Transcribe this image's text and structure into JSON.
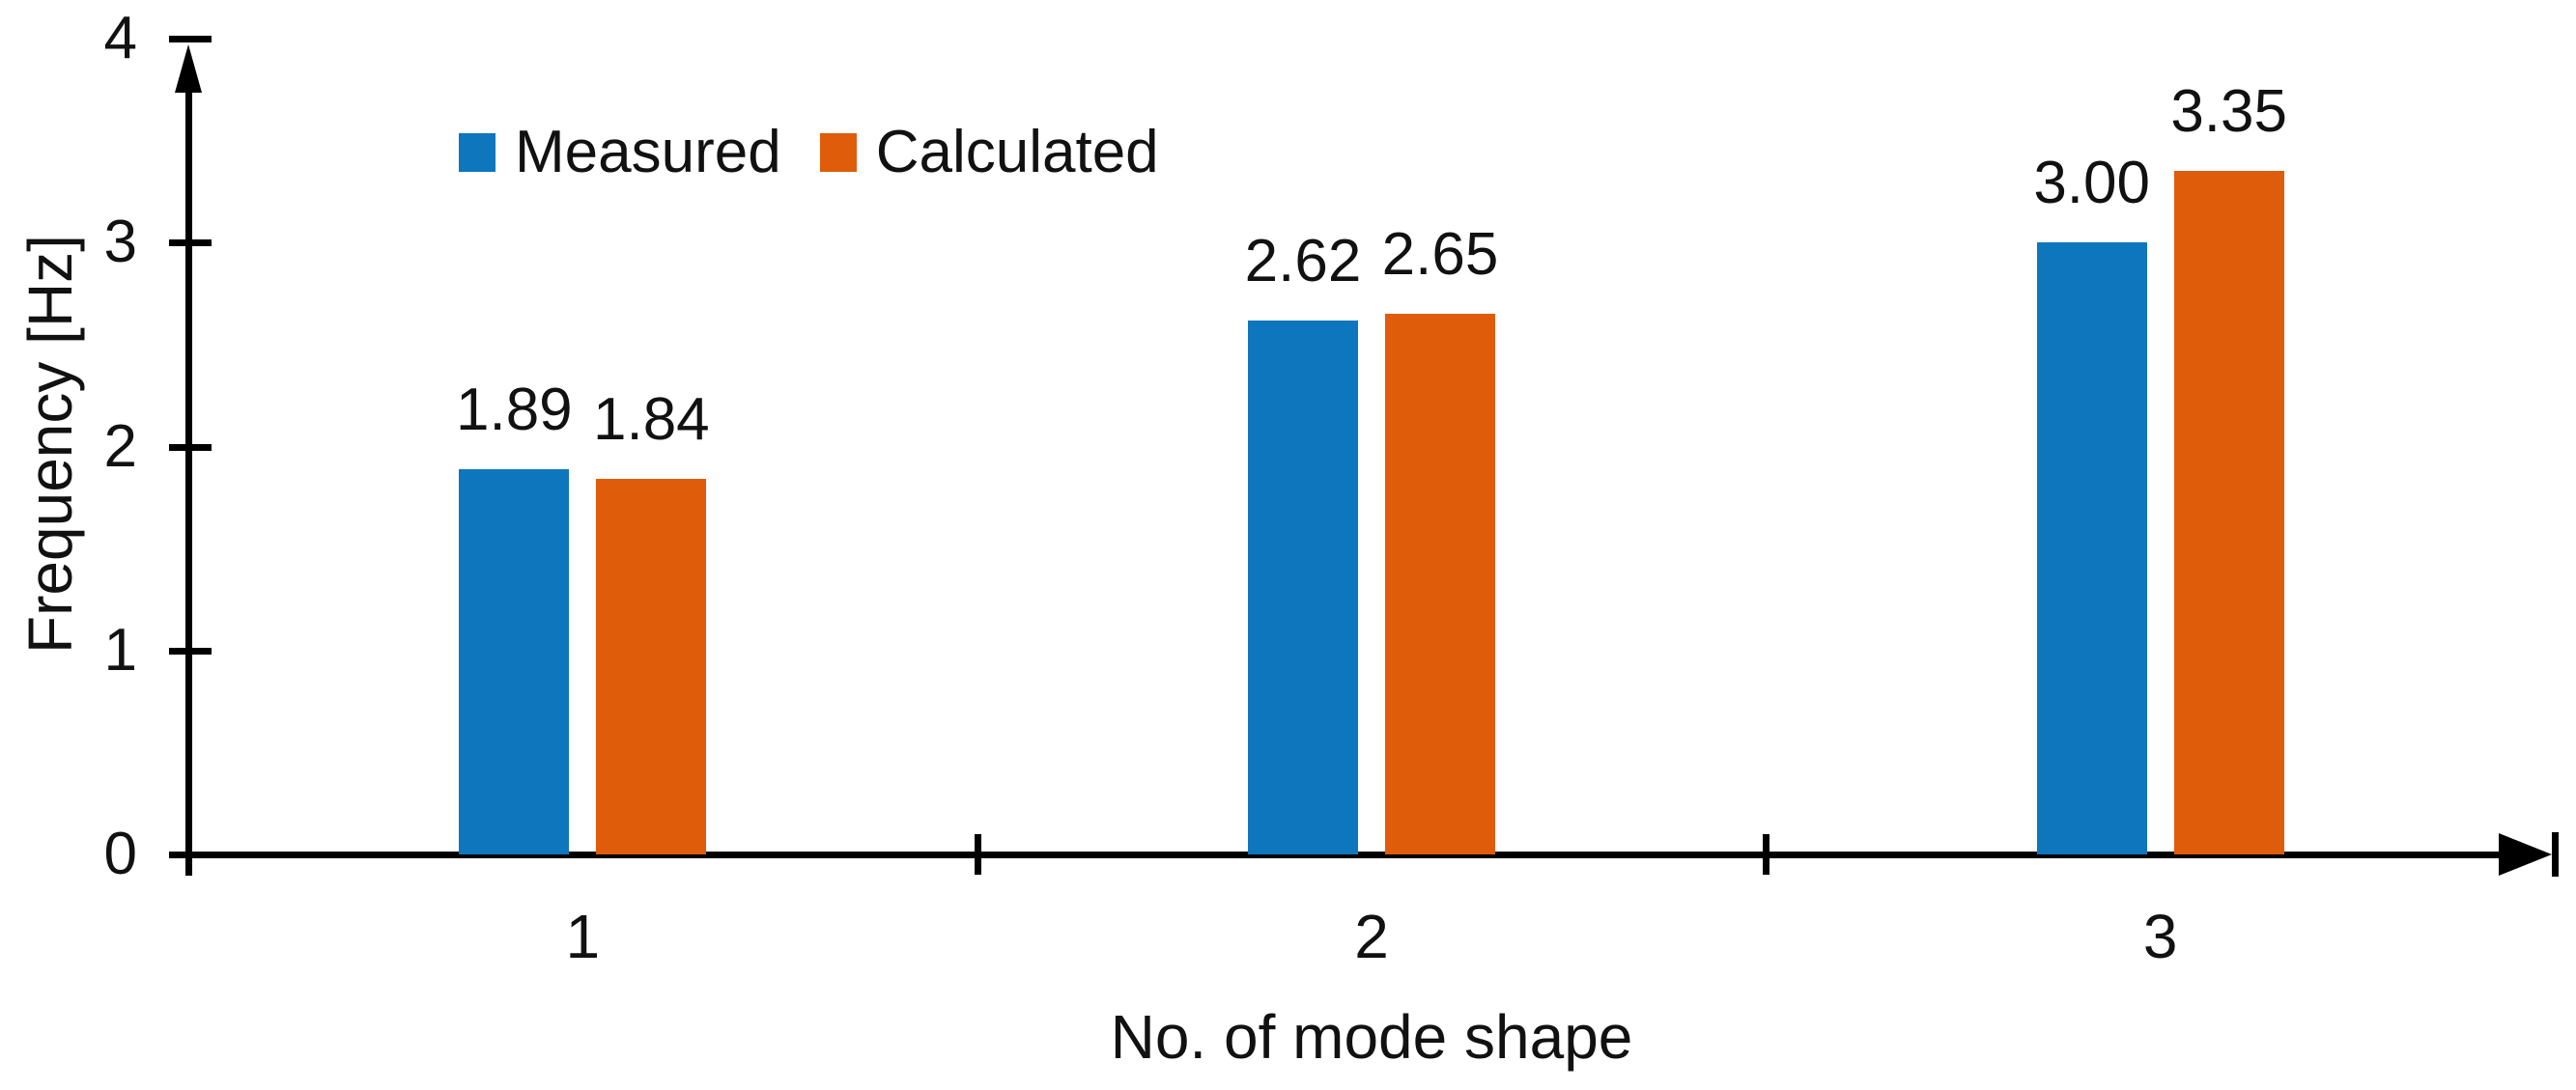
{
  "figure": {
    "background_color": "#ffffff",
    "text_color": "#111111",
    "axis_color": "#000000"
  },
  "chart_data": {
    "type": "bar",
    "title": "",
    "xlabel": "No. of mode shape",
    "ylabel": "Frequency [Hz]",
    "categories": [
      "1",
      "2",
      "3"
    ],
    "series": [
      {
        "name": "Measured",
        "color": "#0E76BC",
        "values": [
          1.89,
          2.62,
          3.0
        ],
        "labels": [
          "1.89",
          "2.62",
          "3.00"
        ]
      },
      {
        "name": "Calculated",
        "color": "#DF5C0A",
        "values": [
          1.84,
          2.65,
          3.35
        ],
        "labels": [
          "1.84",
          "2.65",
          "3.35"
        ]
      }
    ],
    "ylim": [
      0,
      4
    ],
    "yticks": [
      "0",
      "1",
      "2",
      "3",
      "4"
    ],
    "grid": false,
    "legend_position": "top-left-inside",
    "bar_value_labels": true,
    "axis_arrows": true
  }
}
